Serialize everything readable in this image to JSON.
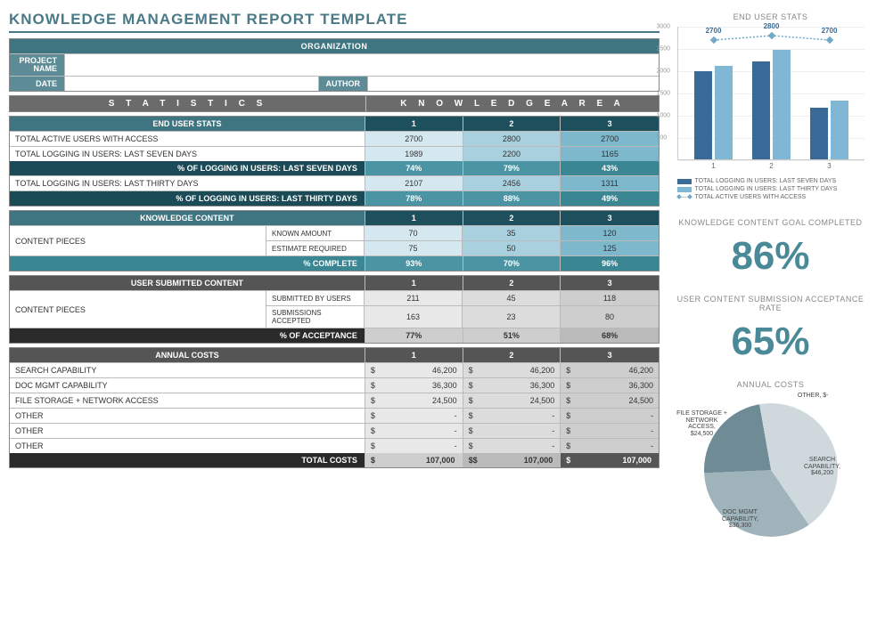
{
  "title": "KNOWLEDGE MANAGEMENT REPORT TEMPLATE",
  "meta": {
    "org_label": "ORGANIZATION",
    "project_label": "PROJECT NAME",
    "date_label": "DATE",
    "author_label": "AUTHOR",
    "org": "",
    "project": "",
    "date": "",
    "author": ""
  },
  "section_headers": {
    "statistics": "S T A T I S T I C S",
    "knowledge_area": "K N O W L E D G E   A R E A"
  },
  "columns": [
    "1",
    "2",
    "3"
  ],
  "end_user": {
    "title": "END USER STATS",
    "rows": [
      {
        "label": "TOTAL ACTIVE USERS WITH ACCESS",
        "vals": [
          "2700",
          "2800",
          "2700"
        ],
        "cls": [
          "lt1",
          "lt2",
          "lt3"
        ]
      },
      {
        "label": "TOTAL LOGGING IN USERS: LAST SEVEN DAYS",
        "vals": [
          "1989",
          "2200",
          "1165"
        ],
        "cls": [
          "lt1",
          "lt2",
          "lt3"
        ]
      }
    ],
    "pct7_label": "% OF LOGGING IN USERS: LAST SEVEN DAYS",
    "pct7": [
      "74%",
      "79%",
      "43%"
    ],
    "row30": {
      "label": "TOTAL LOGGING IN USERS: LAST THIRTY DAYS",
      "vals": [
        "2107",
        "2456",
        "1311"
      ],
      "cls": [
        "lt1",
        "lt2",
        "lt3"
      ]
    },
    "pct30_label": "% OF LOGGING IN USERS: LAST THIRTY DAYS",
    "pct30": [
      "78%",
      "88%",
      "49%"
    ]
  },
  "knowledge_content": {
    "title": "KNOWLEDGE CONTENT",
    "group_label": "CONTENT PIECES",
    "subs": [
      {
        "label": "KNOWN AMOUNT",
        "vals": [
          "70",
          "35",
          "120"
        ],
        "cls": [
          "lt1",
          "lt2",
          "lt3"
        ]
      },
      {
        "label": "ESTIMATE REQUIRED",
        "vals": [
          "75",
          "50",
          "125"
        ],
        "cls": [
          "lt1",
          "lt2",
          "lt3"
        ]
      }
    ],
    "pct_label": "% COMPLETE",
    "pct": [
      "93%",
      "70%",
      "96%"
    ]
  },
  "user_submitted": {
    "title": "USER SUBMITTED CONTENT",
    "group_label": "CONTENT PIECES",
    "subs": [
      {
        "label": "SUBMITTED BY USERS",
        "vals": [
          "211",
          "45",
          "118"
        ],
        "cls": [
          "gr1",
          "gr2",
          "gr3"
        ]
      },
      {
        "label": "SUBMISSIONS ACCEPTED",
        "vals": [
          "163",
          "23",
          "80"
        ],
        "cls": [
          "gr1",
          "gr2",
          "gr3"
        ]
      }
    ],
    "pct_label": "% OF ACCEPTANCE",
    "pct": [
      "77%",
      "51%",
      "68%"
    ]
  },
  "annual_costs": {
    "title": "ANNUAL COSTS",
    "rows": [
      {
        "label": "SEARCH CAPABILITY",
        "vals": [
          "46,200",
          "46,200",
          "46,200"
        ]
      },
      {
        "label": "DOC MGMT CAPABILITY",
        "vals": [
          "36,300",
          "36,300",
          "36,300"
        ]
      },
      {
        "label": "FILE STORAGE + NETWORK ACCESS",
        "vals": [
          "24,500",
          "24,500",
          "24,500"
        ]
      },
      {
        "label": "OTHER",
        "vals": [
          "-",
          "-",
          "-"
        ]
      },
      {
        "label": "OTHER",
        "vals": [
          "-",
          "-",
          "-"
        ]
      },
      {
        "label": "OTHER",
        "vals": [
          "-",
          "-",
          "-"
        ]
      }
    ],
    "total_label": "TOTAL COSTS",
    "totals": [
      "107,000",
      "107,000",
      "107,000"
    ],
    "prefixes": [
      "$",
      "$$",
      "$"
    ],
    "cell_cls": [
      "gr1",
      "gr2",
      "gr3"
    ],
    "total_cls": [
      "gr3",
      "gr4",
      "dark"
    ]
  },
  "chart": {
    "title": "END USER STATS",
    "categories": [
      "1",
      "2",
      "3"
    ],
    "series": [
      {
        "name": "TOTAL LOGGING IN USERS: LAST SEVEN DAYS",
        "color": "#3a6a98",
        "vals": [
          1989,
          2200,
          1165
        ]
      },
      {
        "name": "TOTAL LOGGING IN USERS: LAST THIRTY DAYS",
        "color": "#7fb7d5",
        "vals": [
          2107,
          2456,
          1311
        ]
      }
    ],
    "line": {
      "name": "TOTAL ACTIVE USERS WITH ACCESS",
      "color": "#6fa8c9",
      "vals": [
        2700,
        2800,
        2700
      ]
    },
    "ymax": 3000,
    "ystep": 500
  },
  "kpi1": {
    "title": "KNOWLEDGE CONTENT GOAL COMPLETED",
    "value": "86%"
  },
  "kpi2": {
    "title": "USER CONTENT SUBMISSION ACCEPTANCE RATE",
    "value": "65%"
  },
  "pie": {
    "title": "ANNUAL COSTS",
    "slices": [
      {
        "label": "SEARCH CAPABILITY,",
        "sub": "$46,200",
        "color": "#cfd9dd",
        "pct": 43.2
      },
      {
        "label": "DOC MGMT CAPABILITY,",
        "sub": "$36,300",
        "color": "#9fb3bb",
        "pct": 33.9
      },
      {
        "label": "FILE STORAGE + NETWORK ACCESS,",
        "sub": "$24,500",
        "color": "#6e8b96",
        "pct": 22.9
      }
    ],
    "other_label": "OTHER,  $-"
  },
  "currency": "$"
}
